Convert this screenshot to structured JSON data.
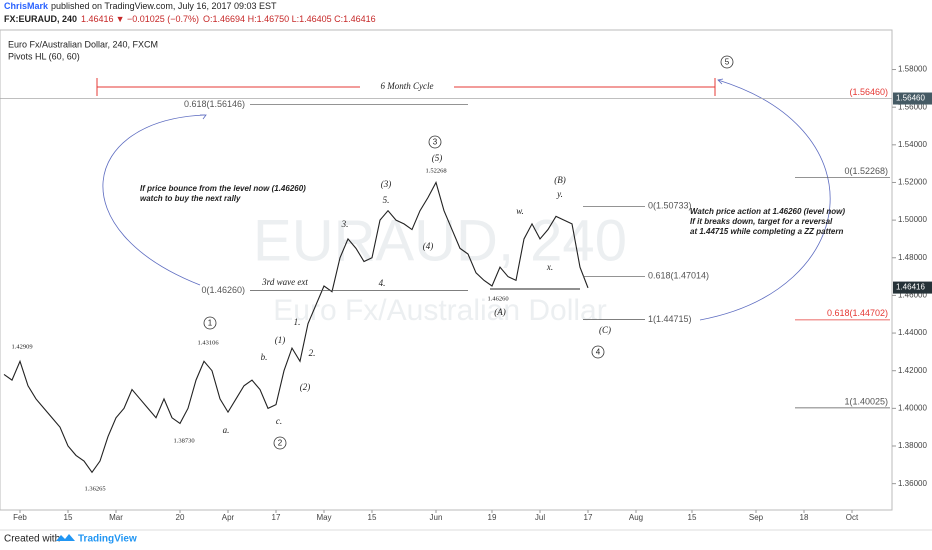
{
  "header": {
    "publisher": "ChrisMark",
    "published": "published on TradingView.com, July 16, 2017 09:03 EST",
    "symbol": "FX:EURAUD, 240",
    "last": "1.46416",
    "change": "▼ −0.01025 (−0.7%)",
    "ohlc": "O:1.46694 H:1.46750 L:1.46405 C:1.46416"
  },
  "footer": {
    "created": "Created with",
    "brand": "TradingView"
  },
  "chart_data": {
    "type": "line",
    "title": "Euro Fx/Australian Dollar, 240, FXCM",
    "indicator": "Pivots HL (60, 60)",
    "watermark": [
      "EURAUD, 240",
      "Euro Fx/Australian Dollar"
    ],
    "color": "#222222",
    "categories": [
      null,
      null,
      "Feb",
      null,
      null,
      null,
      null,
      null,
      "15",
      null,
      null,
      null,
      null,
      null,
      "Mar",
      null,
      null,
      null,
      null,
      null,
      null,
      null,
      "20",
      null,
      null,
      null,
      null,
      null,
      "Apr",
      null,
      null,
      null,
      null,
      null,
      "17",
      null,
      null,
      null,
      null,
      null,
      "May",
      null,
      null,
      null,
      null,
      null,
      "15",
      null,
      null,
      null,
      null,
      null,
      null,
      null,
      "Jun",
      null,
      null,
      null,
      null,
      null,
      null,
      "19",
      null,
      null,
      null,
      null,
      null,
      "Jul",
      null,
      null,
      null,
      null,
      null,
      "17",
      null,
      null,
      null,
      null,
      null,
      "Aug",
      null,
      null,
      null,
      null,
      null,
      null,
      "15",
      null,
      null,
      null,
      null,
      null,
      null,
      null,
      "Sep",
      null,
      null,
      null,
      null,
      null,
      "18",
      null,
      null,
      null,
      null,
      null,
      "Oct",
      null
    ],
    "values": [
      1.418,
      1.415,
      1.425,
      1.412,
      1.405,
      1.4,
      1.395,
      1.39,
      1.38,
      1.375,
      1.372,
      1.366,
      1.372,
      1.385,
      1.395,
      1.4,
      1.41,
      1.405,
      1.4,
      1.395,
      1.405,
      1.395,
      1.392,
      1.4,
      1.415,
      1.425,
      1.42,
      1.405,
      1.398,
      1.405,
      1.412,
      1.415,
      1.41,
      1.4,
      1.402,
      1.42,
      1.432,
      1.425,
      1.445,
      1.455,
      1.465,
      1.462,
      1.48,
      1.49,
      1.485,
      1.478,
      1.48,
      1.5,
      1.505,
      1.5,
      1.498,
      1.495,
      1.505,
      1.512,
      1.52,
      1.505,
      1.495,
      1.485,
      1.482,
      1.472,
      1.468,
      1.465,
      1.475,
      1.47,
      1.468,
      1.49,
      1.498,
      1.49,
      1.495,
      1.502,
      1.5,
      1.498,
      1.475,
      1.464,
      null,
      null,
      null,
      null,
      null,
      null,
      null,
      null,
      null,
      null,
      null,
      null,
      null,
      null,
      null,
      null,
      null,
      null,
      null,
      null,
      null,
      null,
      null,
      null,
      null,
      null,
      null,
      null,
      null,
      null,
      null,
      null,
      null,
      null
    ],
    "ylim": [
      1.346,
      1.601
    ],
    "yticks": [
      {
        "value": 1.36,
        "label": "1.36000"
      },
      {
        "value": 1.38,
        "label": "1.38000"
      },
      {
        "value": 1.4,
        "label": "1.40000"
      },
      {
        "value": 1.42,
        "label": "1.42000"
      },
      {
        "value": 1.44,
        "label": "1.44000"
      },
      {
        "value": 1.46,
        "label": "1.46000"
      },
      {
        "value": 1.48,
        "label": "1.48000"
      },
      {
        "value": 1.5,
        "label": "1.50000"
      },
      {
        "value": 1.52,
        "label": "1.52000"
      },
      {
        "value": 1.54,
        "label": "1.54000"
      },
      {
        "value": 1.56,
        "label": "1.56000"
      },
      {
        "value": 1.58,
        "label": "1.58000"
      }
    ],
    "grid": false,
    "price_tags": [
      {
        "value": 1.5646,
        "label": "1.56460"
      },
      {
        "value": 1.46416,
        "label": "1.46416"
      }
    ],
    "levels": [
      {
        "label": "0.618(1.56146)",
        "value": 1.56146,
        "color": "#555555"
      },
      {
        "label": "0(1.46260)",
        "value": 1.4626,
        "color": "#555555"
      },
      {
        "label": "0(1.50733)",
        "value": 1.50733,
        "color": "#555555"
      },
      {
        "label": "0.618(1.47014)",
        "value": 1.47014,
        "color": "#555555"
      },
      {
        "label": "1(1.44715)",
        "value": 1.44715,
        "color": "#555555"
      },
      {
        "label": "(1.56460)",
        "value": 1.5646,
        "color": "#e53935"
      },
      {
        "label": "0(1.52268)",
        "value": 1.52268,
        "color": "#555555"
      },
      {
        "label": "0.618(1.44702)",
        "value": 1.44702,
        "color": "#e53935"
      },
      {
        "label": "1(1.40025)",
        "value": 1.40025,
        "color": "#555555"
      }
    ],
    "waves": [
      "(1)",
      "(2)",
      "(3)",
      "(4)",
      "(5)",
      "(A)",
      "(B)",
      "(C)",
      "a.",
      "b.",
      "c.",
      "1.",
      "2.",
      "3.",
      "4.",
      "5.",
      "w.",
      "x.",
      "y."
    ],
    "circled": [
      "1",
      "2",
      "3",
      "4",
      "5"
    ],
    "price_notes": [
      "1.42909",
      "1.36265",
      "1.38730",
      "1.43106",
      "1.52268",
      "1.46260"
    ],
    "notes": [
      "3rd wave ext",
      "6 Month Cycle",
      "If price bounce from the level now (1.46260)",
      "watch to buy the next rally",
      "Watch price action at 1.46260 (level now)",
      "If it breaks down, target for a reversal",
      "at 1.44715 while completing a ZZ pattern"
    ]
  }
}
